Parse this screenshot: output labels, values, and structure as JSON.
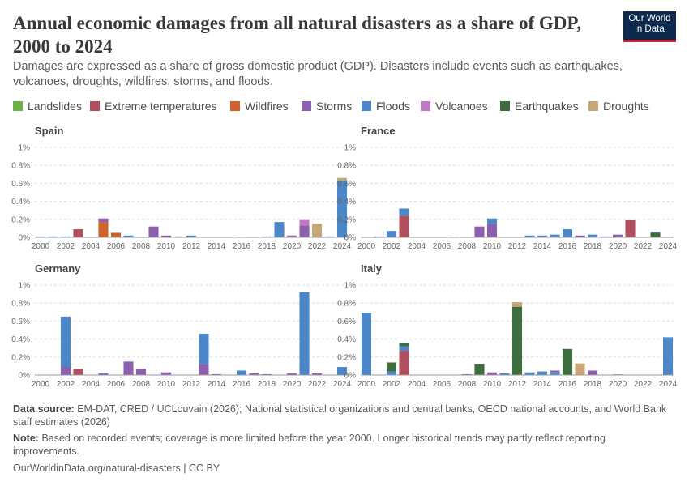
{
  "header": {
    "title": "Annual economic damages from all natural disasters as a share of GDP, 2000 to 2024",
    "subtitle": "Damages are expressed as a share of gross domestic product (GDP). Disasters include events such as earthquakes, volcanoes, droughts, wildfires, storms, and floods.",
    "logo_line1": "Our World",
    "logo_line2": "in Data"
  },
  "legend": [
    {
      "label": "Landslides",
      "color": "#6ab04c"
    },
    {
      "label": "Extreme temperatures",
      "color": "#b0505e"
    },
    {
      "label": "Wildfires",
      "color": "#d0622b"
    },
    {
      "label": "Storms",
      "color": "#8e5fae"
    },
    {
      "label": "Floods",
      "color": "#4c87c9"
    },
    {
      "label": "Volcanoes",
      "color": "#c377c2"
    },
    {
      "label": "Earthquakes",
      "color": "#3f6e3e"
    },
    {
      "label": "Droughts",
      "color": "#c9a678"
    }
  ],
  "footer": {
    "source_label": "Data source:",
    "source_text": "EM-DAT, CRED / UCLouvain (2026); National statistical organizations and central banks, OECD national accounts, and World Bank staff estimates (2026)",
    "note_label": "Note:",
    "note_text": "Based on recorded events; coverage is more limited before the year 2000. Longer historical trends may partly reflect reporting improvements.",
    "url": "OurWorldinData.org/natural-disasters | CC BY"
  },
  "chart_data": [
    {
      "type": "bar",
      "stacked": true,
      "title": "Spain",
      "x_ticks": [
        "2000",
        "2002",
        "2004",
        "2006",
        "2008",
        "2010",
        "2012",
        "2014",
        "2016",
        "2018",
        "2020",
        "2022",
        "2024"
      ],
      "y_ticks": [
        "0%",
        "0.2%",
        "0.4%",
        "0.6%",
        "0.8%",
        "1%"
      ],
      "ylim": [
        0,
        1
      ],
      "grid": true,
      "bars": [
        {
          "year": 2000,
          "segments": [
            {
              "type": "Floods",
              "value": 0.01
            }
          ]
        },
        {
          "year": 2001,
          "segments": [
            {
              "type": "Floods",
              "value": 0.01
            }
          ]
        },
        {
          "year": 2002,
          "segments": [
            {
              "type": "Floods",
              "value": 0.01
            }
          ]
        },
        {
          "year": 2003,
          "segments": [
            {
              "type": "Extreme temperatures",
              "value": 0.09
            }
          ]
        },
        {
          "year": 2005,
          "segments": [
            {
              "type": "Wildfires",
              "value": 0.17
            },
            {
              "type": "Storms",
              "value": 0.04
            }
          ]
        },
        {
          "year": 2006,
          "segments": [
            {
              "type": "Wildfires",
              "value": 0.05
            }
          ]
        },
        {
          "year": 2007,
          "segments": [
            {
              "type": "Floods",
              "value": 0.02
            }
          ]
        },
        {
          "year": 2009,
          "segments": [
            {
              "type": "Storms",
              "value": 0.12
            }
          ]
        },
        {
          "year": 2010,
          "segments": [
            {
              "type": "Storms",
              "value": 0.02
            }
          ]
        },
        {
          "year": 2011,
          "segments": [
            {
              "type": "Earthquakes",
              "value": 0.01
            }
          ]
        },
        {
          "year": 2012,
          "segments": [
            {
              "type": "Floods",
              "value": 0.02
            }
          ]
        },
        {
          "year": 2016,
          "segments": [
            {
              "type": "Floods",
              "value": 0.005
            }
          ]
        },
        {
          "year": 2018,
          "segments": [
            {
              "type": "Floods",
              "value": 0.01
            }
          ]
        },
        {
          "year": 2019,
          "segments": [
            {
              "type": "Floods",
              "value": 0.17
            }
          ]
        },
        {
          "year": 2020,
          "segments": [
            {
              "type": "Storms",
              "value": 0.02
            }
          ]
        },
        {
          "year": 2021,
          "segments": [
            {
              "type": "Storms",
              "value": 0.13
            },
            {
              "type": "Volcanoes",
              "value": 0.07
            }
          ]
        },
        {
          "year": 2022,
          "segments": [
            {
              "type": "Droughts",
              "value": 0.15
            }
          ]
        },
        {
          "year": 2023,
          "segments": [
            {
              "type": "Floods",
              "value": 0.01
            }
          ]
        },
        {
          "year": 2024,
          "segments": [
            {
              "type": "Floods",
              "value": 0.63
            },
            {
              "type": "Droughts",
              "value": 0.03
            }
          ]
        }
      ]
    },
    {
      "type": "bar",
      "stacked": true,
      "title": "France",
      "x_ticks": [
        "2000",
        "2002",
        "2004",
        "2006",
        "2008",
        "2010",
        "2012",
        "2014",
        "2016",
        "2018",
        "2020",
        "2022",
        "2024"
      ],
      "y_ticks": [
        "0%",
        "0.2%",
        "0.4%",
        "0.6%",
        "0.8%",
        "1%"
      ],
      "ylim": [
        0,
        1
      ],
      "grid": true,
      "bars": [
        {
          "year": 2001,
          "segments": [
            {
              "type": "Floods",
              "value": 0.01
            }
          ]
        },
        {
          "year": 2002,
          "segments": [
            {
              "type": "Floods",
              "value": 0.07
            }
          ]
        },
        {
          "year": 2003,
          "segments": [
            {
              "type": "Extreme temperatures",
              "value": 0.24
            },
            {
              "type": "Floods",
              "value": 0.08
            }
          ]
        },
        {
          "year": 2007,
          "segments": [
            {
              "type": "Floods",
              "value": 0.005
            }
          ]
        },
        {
          "year": 2009,
          "segments": [
            {
              "type": "Storms",
              "value": 0.12
            }
          ]
        },
        {
          "year": 2010,
          "segments": [
            {
              "type": "Storms",
              "value": 0.15
            },
            {
              "type": "Floods",
              "value": 0.06
            }
          ]
        },
        {
          "year": 2013,
          "segments": [
            {
              "type": "Floods",
              "value": 0.02
            }
          ]
        },
        {
          "year": 2014,
          "segments": [
            {
              "type": "Floods",
              "value": 0.02
            }
          ]
        },
        {
          "year": 2015,
          "segments": [
            {
              "type": "Floods",
              "value": 0.03
            }
          ]
        },
        {
          "year": 2016,
          "segments": [
            {
              "type": "Floods",
              "value": 0.09
            }
          ]
        },
        {
          "year": 2017,
          "segments": [
            {
              "type": "Storms",
              "value": 0.02
            }
          ]
        },
        {
          "year": 2018,
          "segments": [
            {
              "type": "Floods",
              "value": 0.03
            }
          ]
        },
        {
          "year": 2019,
          "segments": [
            {
              "type": "Storms",
              "value": 0.01
            }
          ]
        },
        {
          "year": 2020,
          "segments": [
            {
              "type": "Storms",
              "value": 0.03
            }
          ]
        },
        {
          "year": 2021,
          "segments": [
            {
              "type": "Extreme temperatures",
              "value": 0.19
            }
          ]
        },
        {
          "year": 2023,
          "segments": [
            {
              "type": "Earthquakes",
              "value": 0.05
            },
            {
              "type": "Floods",
              "value": 0.01
            }
          ]
        }
      ]
    },
    {
      "type": "bar",
      "stacked": true,
      "title": "Germany",
      "x_ticks": [
        "2000",
        "2002",
        "2004",
        "2006",
        "2008",
        "2010",
        "2012",
        "2014",
        "2016",
        "2018",
        "2020",
        "2022",
        "2024"
      ],
      "y_ticks": [
        "0%",
        "0.2%",
        "0.4%",
        "0.6%",
        "0.8%",
        "1%"
      ],
      "ylim": [
        0,
        1
      ],
      "grid": true,
      "bars": [
        {
          "year": 2002,
          "segments": [
            {
              "type": "Storms",
              "value": 0.09
            },
            {
              "type": "Floods",
              "value": 0.56
            }
          ]
        },
        {
          "year": 2003,
          "segments": [
            {
              "type": "Extreme temperatures",
              "value": 0.07
            }
          ]
        },
        {
          "year": 2005,
          "segments": [
            {
              "type": "Storms",
              "value": 0.02
            }
          ]
        },
        {
          "year": 2007,
          "segments": [
            {
              "type": "Storms",
              "value": 0.15
            }
          ]
        },
        {
          "year": 2008,
          "segments": [
            {
              "type": "Storms",
              "value": 0.07
            }
          ]
        },
        {
          "year": 2010,
          "segments": [
            {
              "type": "Storms",
              "value": 0.03
            }
          ]
        },
        {
          "year": 2013,
          "segments": [
            {
              "type": "Storms",
              "value": 0.12
            },
            {
              "type": "Floods",
              "value": 0.34
            }
          ]
        },
        {
          "year": 2014,
          "segments": [
            {
              "type": "Storms",
              "value": 0.01
            }
          ]
        },
        {
          "year": 2016,
          "segments": [
            {
              "type": "Floods",
              "value": 0.05
            }
          ]
        },
        {
          "year": 2017,
          "segments": [
            {
              "type": "Storms",
              "value": 0.02
            }
          ]
        },
        {
          "year": 2018,
          "segments": [
            {
              "type": "Storms",
              "value": 0.01
            }
          ]
        },
        {
          "year": 2020,
          "segments": [
            {
              "type": "Storms",
              "value": 0.02
            }
          ]
        },
        {
          "year": 2021,
          "segments": [
            {
              "type": "Floods",
              "value": 0.92
            }
          ]
        },
        {
          "year": 2022,
          "segments": [
            {
              "type": "Storms",
              "value": 0.02
            }
          ]
        },
        {
          "year": 2024,
          "segments": [
            {
              "type": "Floods",
              "value": 0.09
            }
          ]
        }
      ]
    },
    {
      "type": "bar",
      "stacked": true,
      "title": "Italy",
      "x_ticks": [
        "2000",
        "2002",
        "2004",
        "2006",
        "2008",
        "2010",
        "2012",
        "2014",
        "2016",
        "2018",
        "2020",
        "2022",
        "2024"
      ],
      "y_ticks": [
        "0%",
        "0.2%",
        "0.4%",
        "0.6%",
        "0.8%",
        "1%"
      ],
      "ylim": [
        0,
        1
      ],
      "grid": true,
      "bars": [
        {
          "year": 2000,
          "segments": [
            {
              "type": "Floods",
              "value": 0.69
            }
          ]
        },
        {
          "year": 2002,
          "segments": [
            {
              "type": "Floods",
              "value": 0.04
            },
            {
              "type": "Earthquakes",
              "value": 0.1
            }
          ]
        },
        {
          "year": 2003,
          "segments": [
            {
              "type": "Extreme temperatures",
              "value": 0.27
            },
            {
              "type": "Floods",
              "value": 0.05
            },
            {
              "type": "Earthquakes",
              "value": 0.04
            }
          ]
        },
        {
          "year": 2008,
          "segments": [
            {
              "type": "Floods",
              "value": 0.01
            }
          ]
        },
        {
          "year": 2009,
          "segments": [
            {
              "type": "Earthquakes",
              "value": 0.12
            }
          ]
        },
        {
          "year": 2010,
          "segments": [
            {
              "type": "Storms",
              "value": 0.03
            }
          ]
        },
        {
          "year": 2011,
          "segments": [
            {
              "type": "Floods",
              "value": 0.02
            }
          ]
        },
        {
          "year": 2012,
          "segments": [
            {
              "type": "Earthquakes",
              "value": 0.76
            },
            {
              "type": "Droughts",
              "value": 0.05
            }
          ]
        },
        {
          "year": 2013,
          "segments": [
            {
              "type": "Floods",
              "value": 0.03
            }
          ]
        },
        {
          "year": 2014,
          "segments": [
            {
              "type": "Floods",
              "value": 0.04
            }
          ]
        },
        {
          "year": 2015,
          "segments": [
            {
              "type": "Floods",
              "value": 0.03
            },
            {
              "type": "Storms",
              "value": 0.02
            }
          ]
        },
        {
          "year": 2016,
          "segments": [
            {
              "type": "Earthquakes",
              "value": 0.29
            }
          ]
        },
        {
          "year": 2017,
          "segments": [
            {
              "type": "Droughts",
              "value": 0.13
            }
          ]
        },
        {
          "year": 2018,
          "segments": [
            {
              "type": "Storms",
              "value": 0.05
            }
          ]
        },
        {
          "year": 2020,
          "segments": [
            {
              "type": "Storms",
              "value": 0.005
            }
          ]
        },
        {
          "year": 2024,
          "segments": [
            {
              "type": "Floods",
              "value": 0.42
            }
          ]
        }
      ]
    }
  ]
}
